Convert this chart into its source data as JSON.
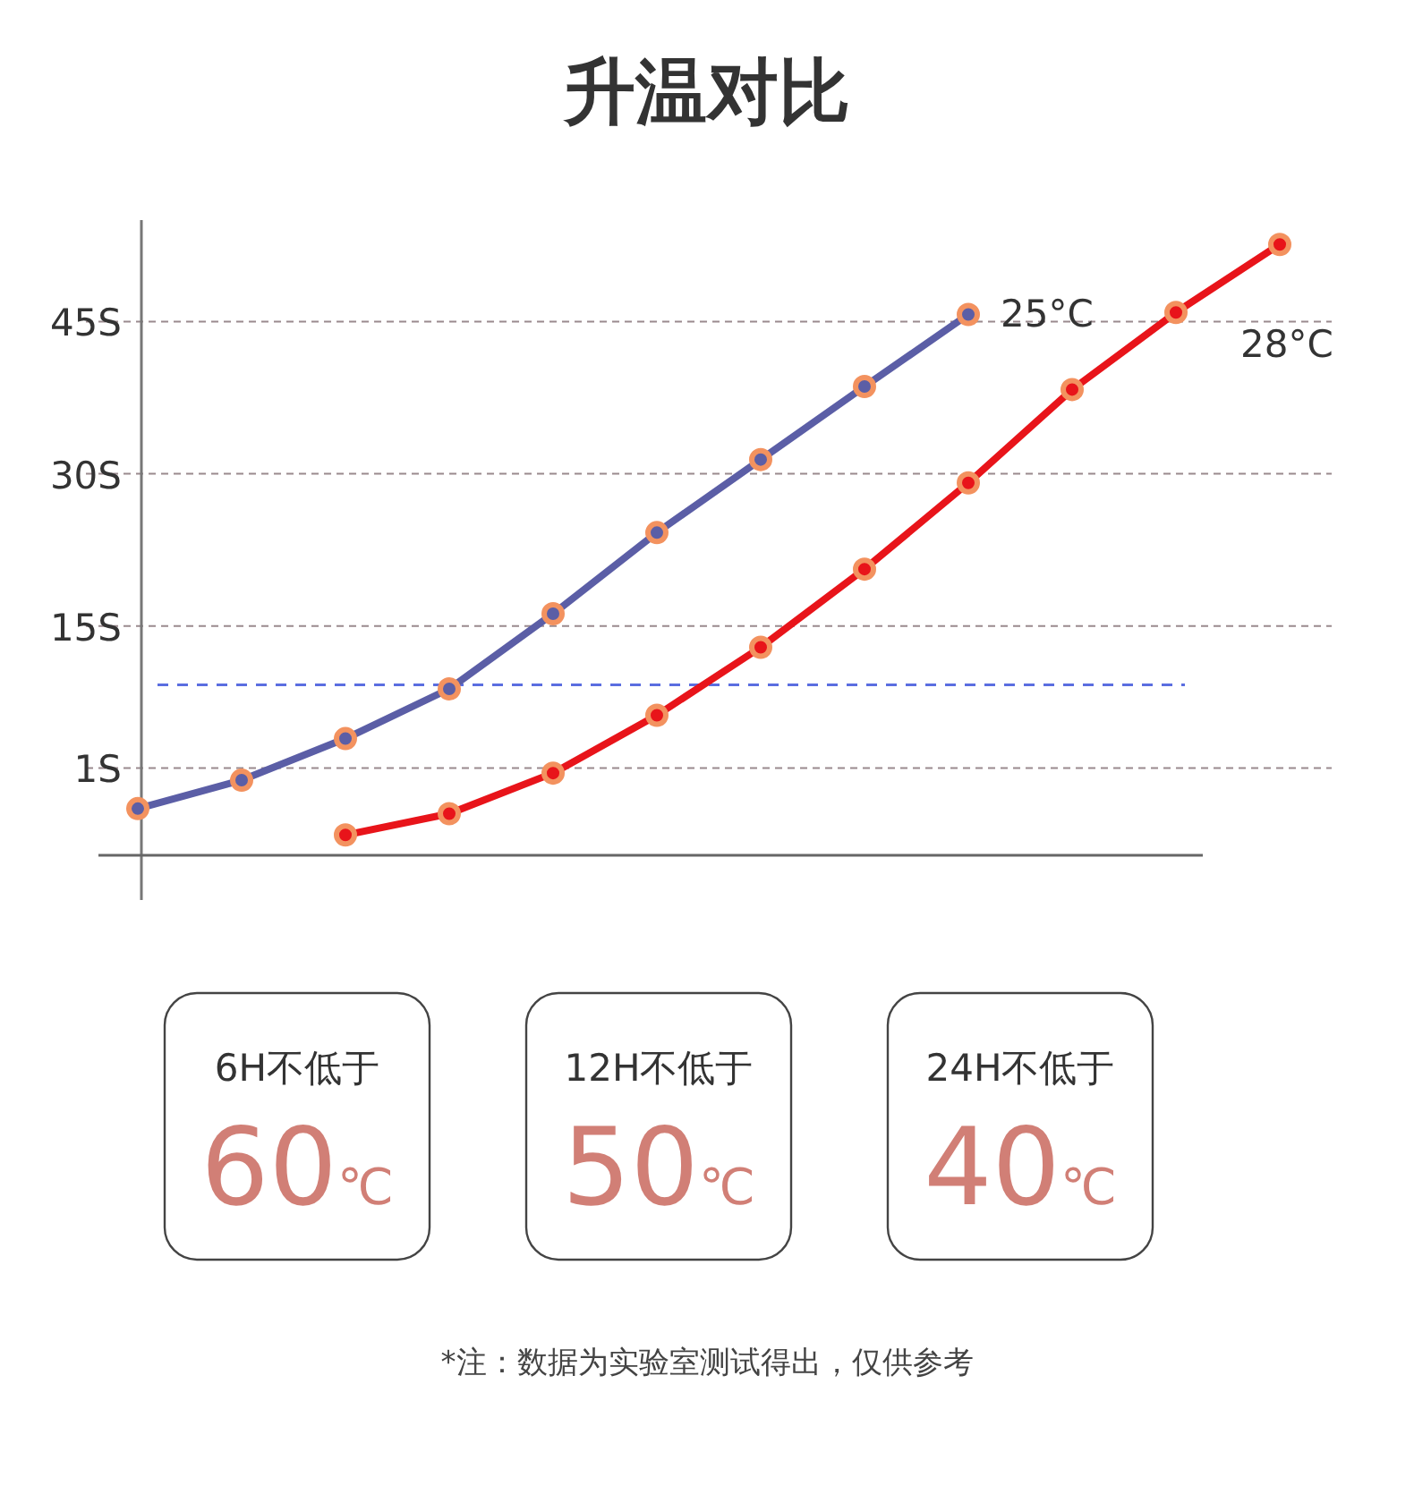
{
  "chart_data": {
    "type": "line",
    "title": "升温对比",
    "categories": [
      null,
      null,
      null,
      null,
      null,
      null,
      null,
      null,
      null,
      null,
      null,
      null
    ],
    "ylim": [
      -7.6,
      55
    ],
    "yticks": [
      {
        "value": 1,
        "label": "1S"
      },
      {
        "value": 15,
        "label": "15S"
      },
      {
        "value": 30,
        "label": "30S"
      },
      {
        "value": 45,
        "label": "45S"
      }
    ],
    "tick_labels": "y",
    "grid": "y",
    "legend": "right",
    "marker": "circle",
    "line_style": "solid",
    "series": [
      {
        "name": "25°C",
        "color": "#5b5ea6",
        "values": [
          -3.0,
          -0.2,
          3.9,
          8.8,
          16.2,
          24.2,
          31.4,
          38.6,
          45.7,
          null,
          null,
          null
        ]
      },
      {
        "name": "28°C",
        "color": "#e8141a",
        "values": [
          null,
          null,
          -5.6,
          -3.5,
          0.5,
          6.2,
          12.9,
          20.6,
          29.1,
          38.3,
          45.9,
          52.6
        ]
      }
    ],
    "ref_lines": [
      {
        "axis": "y",
        "value": 9.2,
        "color": "#5b6ee0",
        "line_style": "dashed"
      }
    ],
    "annotations": [
      "6H不低于",
      "60℃",
      "12H不低于",
      "50℃",
      "24H不低于",
      "40℃",
      "*注：数据为实验室测试得出，仅供参考"
    ]
  }
}
